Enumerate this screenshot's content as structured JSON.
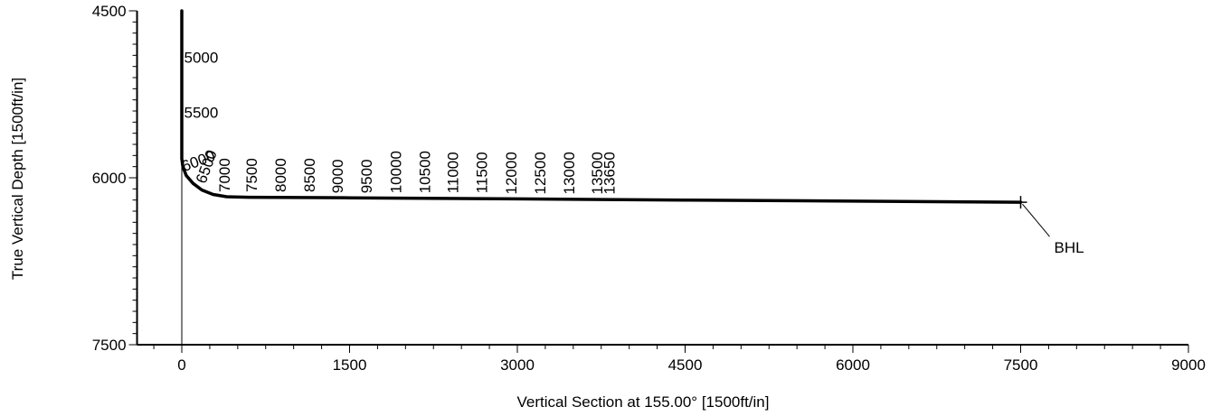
{
  "chart_data": {
    "type": "line",
    "xlabel": "Vertical Section at 155.00° [1500ft/in]",
    "ylabel": "True Vertical Depth [1500ft/in]",
    "xlim": [
      -400,
      9000
    ],
    "ylim": [
      4500,
      7500
    ],
    "y_inverted": true,
    "x_ticks": [
      0,
      1500,
      3000,
      4500,
      6000,
      7500,
      9000
    ],
    "x_tick_labels": [
      "0",
      "1500",
      "3000",
      "4500",
      "6000",
      "7500",
      "9000"
    ],
    "y_ticks": [
      4500,
      6000,
      7500
    ],
    "y_tick_labels": [
      "4500",
      "6000",
      "7500"
    ],
    "grid": false,
    "series": [
      {
        "points": [
          [
            0,
            4500
          ],
          [
            0,
            5000
          ],
          [
            0,
            5500
          ],
          [
            0,
            5830
          ],
          [
            10,
            5900
          ],
          [
            40,
            5980
          ],
          [
            100,
            6050
          ],
          [
            180,
            6110
          ],
          [
            280,
            6150
          ],
          [
            400,
            6170
          ],
          [
            600,
            6175
          ],
          [
            1500,
            6180
          ],
          [
            3000,
            6190
          ],
          [
            4500,
            6200
          ],
          [
            6000,
            6210
          ],
          [
            7500,
            6220
          ]
        ]
      }
    ],
    "md_labels": [
      {
        "text": "5000",
        "x": 20,
        "y": 4965,
        "rotation": 0
      },
      {
        "text": "5500",
        "x": 20,
        "y": 5460,
        "rotation": 0
      },
      {
        "text": "6000",
        "x": 20,
        "y": 5945,
        "rotation": -20
      },
      {
        "text": "6500",
        "x": 210,
        "y": 6060,
        "rotation": -70
      },
      {
        "text": "7000",
        "x": 430,
        "y": 6130,
        "rotation": -90
      },
      {
        "text": "7500",
        "x": 670,
        "y": 6130,
        "rotation": -90
      },
      {
        "text": "8000",
        "x": 930,
        "y": 6130,
        "rotation": -90
      },
      {
        "text": "8500",
        "x": 1190,
        "y": 6130,
        "rotation": -90
      },
      {
        "text": "9000",
        "x": 1440,
        "y": 6140,
        "rotation": -90
      },
      {
        "text": "9500",
        "x": 1700,
        "y": 6140,
        "rotation": -90
      },
      {
        "text": "10000",
        "x": 1960,
        "y": 6140,
        "rotation": -90
      },
      {
        "text": "10500",
        "x": 2220,
        "y": 6140,
        "rotation": -90
      },
      {
        "text": "11000",
        "x": 2470,
        "y": 6140,
        "rotation": -90
      },
      {
        "text": "11500",
        "x": 2730,
        "y": 6140,
        "rotation": -90
      },
      {
        "text": "12000",
        "x": 2990,
        "y": 6150,
        "rotation": -90
      },
      {
        "text": "12500",
        "x": 3250,
        "y": 6150,
        "rotation": -90
      },
      {
        "text": "13000",
        "x": 3510,
        "y": 6150,
        "rotation": -90
      },
      {
        "text": "13500",
        "x": 3760,
        "y": 6150,
        "rotation": -90
      },
      {
        "text": "13650",
        "x": 3870,
        "y": 6150,
        "rotation": -90
      }
    ],
    "annotations": [
      {
        "text": "BHL",
        "x": 7500,
        "y": 6220
      }
    ]
  }
}
